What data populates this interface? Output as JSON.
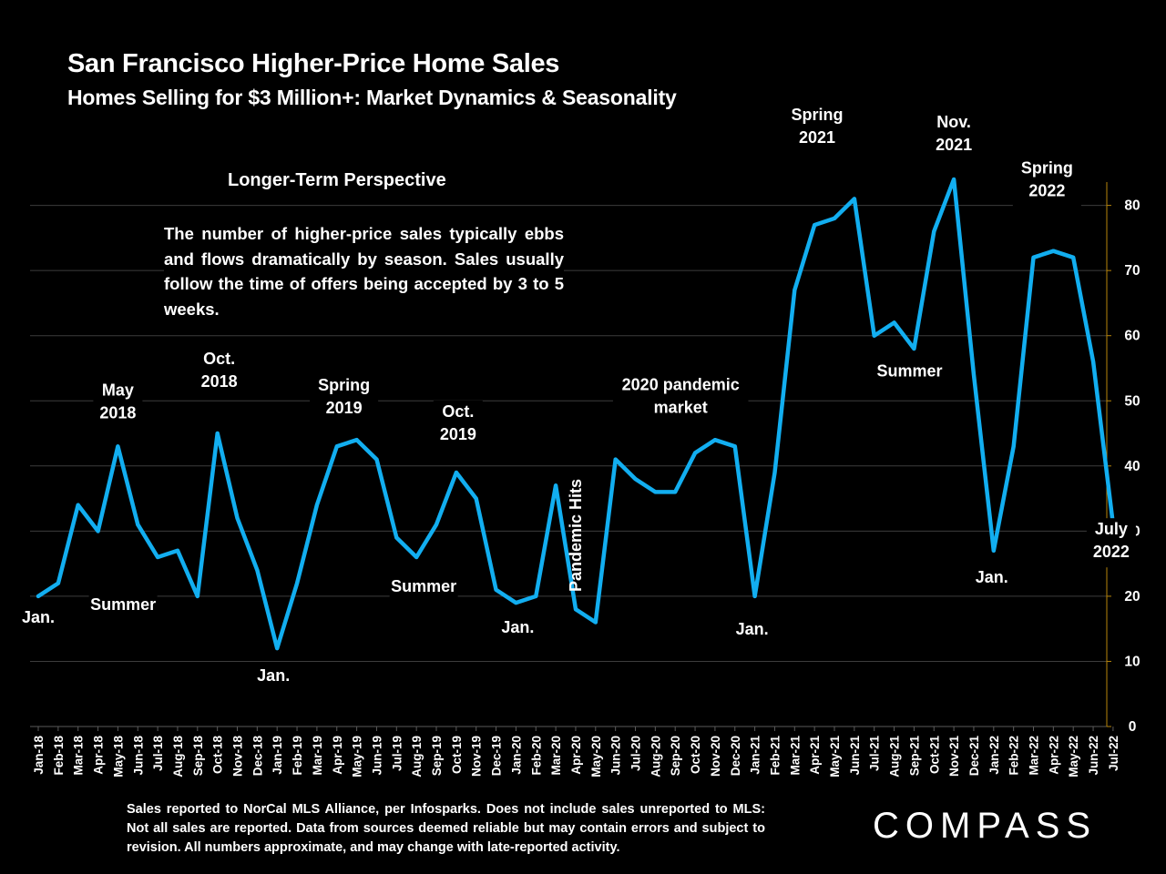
{
  "header": {
    "title": "San Francisco Higher-Price Home Sales",
    "subtitle": "Homes Selling for  $3 Million+: Market Dynamics & Seasonality"
  },
  "perspective": {
    "heading": "Longer-Term Perspective",
    "body": "The number of higher-price sales typically ebbs and flows dramatically by season. Sales usually follow the time of offers being accepted by 3 to 5 weeks."
  },
  "footnote": "Sales reported to NorCal MLS Alliance, per Infosparks. Does not include sales unreported to MLS: Not all sales are reported. Data from sources deemed reliable but may contain errors and subject to revision.  All numbers approximate, and may change with late-reported activity.",
  "logo": "COMPASS",
  "colors": {
    "line": "#12aef0",
    "background": "#000000",
    "grid": "#3c3c3c",
    "axis_right": "#b8860b"
  },
  "chart_data": {
    "type": "line",
    "title": "",
    "xlabel": "",
    "ylabel": "",
    "ylim": [
      0,
      84
    ],
    "yticks": [
      0,
      10,
      20,
      30,
      40,
      50,
      60,
      70,
      80
    ],
    "y_axis_side": "right",
    "grid": "horizontal",
    "categories": [
      "Jan-18",
      "Feb-18",
      "Mar-18",
      "Apr-18",
      "May-18",
      "Jun-18",
      "Jul-18",
      "Aug-18",
      "Sep-18",
      "Oct-18",
      "Nov-18",
      "Dec-18",
      "Jan-19",
      "Feb-19",
      "Mar-19",
      "Apr-19",
      "May-19",
      "Jun-19",
      "Jul-19",
      "Aug-19",
      "Sep-19",
      "Oct-19",
      "Nov-19",
      "Dec-19",
      "Jan-20",
      "Feb-20",
      "Mar-20",
      "Apr-20",
      "May-20",
      "Jun-20",
      "Jul-20",
      "Aug-20",
      "Sep-20",
      "Oct-20",
      "Nov-20",
      "Dec-20",
      "Jan-21",
      "Feb-21",
      "Mar-21",
      "Apr-21",
      "May-21",
      "Jun-21",
      "Jul-21",
      "Aug-21",
      "Sep-21",
      "Oct-21",
      "Nov-21",
      "Dec-21",
      "Jan-22",
      "Feb-22",
      "Mar-22",
      "Apr-22",
      "May-22",
      "Jun-22",
      "Jul-22"
    ],
    "series": [
      {
        "values": [
          20,
          22,
          34,
          30,
          43,
          31,
          26,
          27,
          20,
          45,
          32,
          24,
          12,
          22,
          34,
          43,
          44,
          41,
          29,
          26,
          31,
          39,
          35,
          21,
          19,
          20,
          37,
          18,
          16,
          41,
          38,
          36,
          36,
          42,
          44,
          43,
          20,
          39,
          67,
          77,
          78,
          81,
          60,
          62,
          58,
          76,
          84,
          54,
          27,
          43,
          72,
          73,
          72,
          56,
          31
        ]
      }
    ],
    "annotations": [
      {
        "lines": [
          "Jan."
        ],
        "x": 0,
        "y": 20
      },
      {
        "lines": [
          "May",
          "2018"
        ],
        "x": 4,
        "y": 43
      },
      {
        "lines": [
          "Summer"
        ],
        "x": 6,
        "y": 26
      },
      {
        "lines": [
          "Oct.",
          "2018"
        ],
        "x": 9,
        "y": 45
      },
      {
        "lines": [
          "Jan."
        ],
        "x": 12,
        "y": 12
      },
      {
        "lines": [
          "Spring",
          "2019"
        ],
        "x": 16,
        "y": 44
      },
      {
        "lines": [
          "Summer"
        ],
        "x": 19,
        "y": 26
      },
      {
        "lines": [
          "Oct.",
          "2019"
        ],
        "x": 21,
        "y": 39
      },
      {
        "lines": [
          "Jan."
        ],
        "x": 24,
        "y": 19
      },
      {
        "lines": [
          "Pandemic Hits"
        ],
        "x": 27,
        "y": 18,
        "vertical": true
      },
      {
        "lines": [
          "2020 pandemic",
          "market"
        ],
        "x": 32,
        "y": 36
      },
      {
        "lines": [
          "Jan."
        ],
        "x": 36,
        "y": 20
      },
      {
        "lines": [
          "Spring",
          "2021"
        ],
        "x": 40,
        "y": 78
      },
      {
        "lines": [
          "Summer"
        ],
        "x": 43,
        "y": 62
      },
      {
        "lines": [
          "Nov.",
          "2021"
        ],
        "x": 46,
        "y": 84
      },
      {
        "lines": [
          "Jan."
        ],
        "x": 48,
        "y": 27
      },
      {
        "lines": [
          "Spring",
          "2022"
        ],
        "x": 51,
        "y": 73
      },
      {
        "lines": [
          "July",
          "2022"
        ],
        "x": 54,
        "y": 31
      }
    ]
  }
}
